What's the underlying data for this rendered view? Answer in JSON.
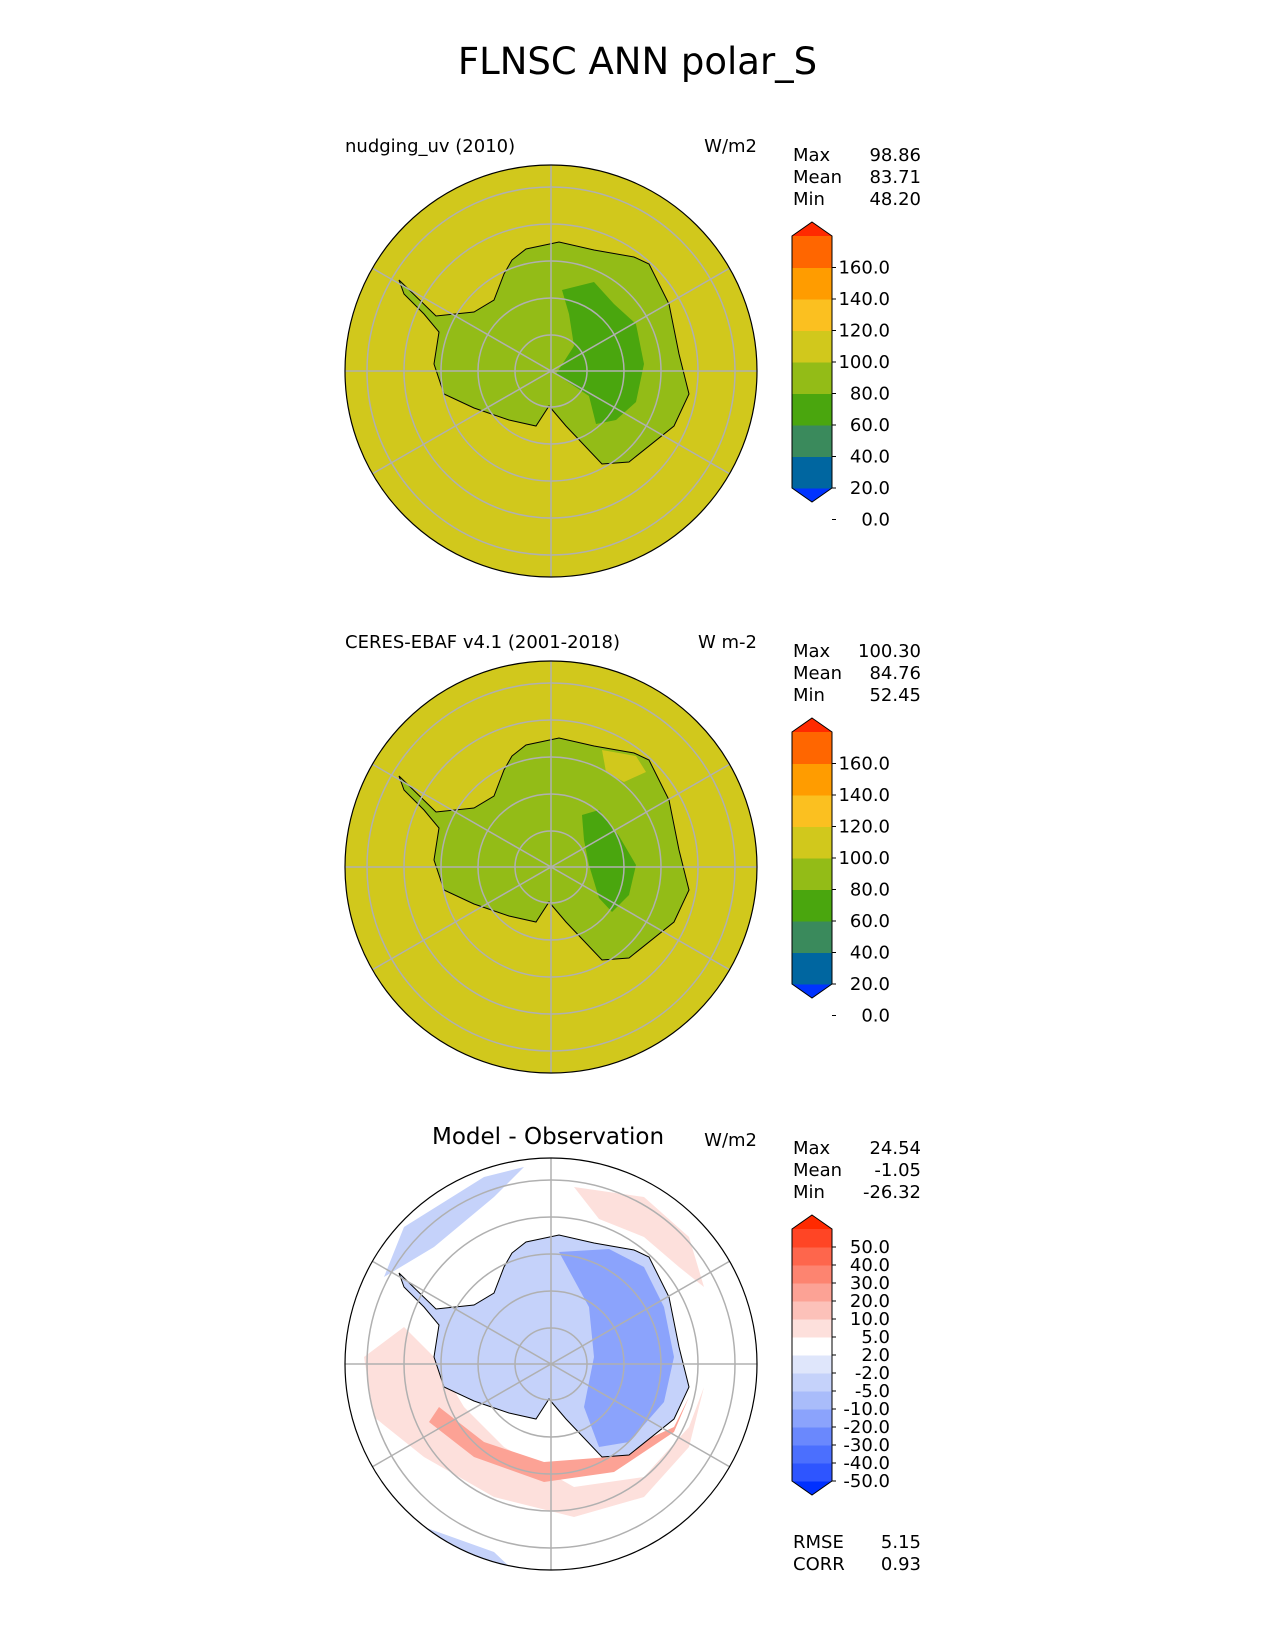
{
  "figure_title": "FLNSC ANN polar_S",
  "panels": [
    {
      "title": "nudging_uv (2010)",
      "units": "W/m2",
      "stats": [
        {
          "label": "Max",
          "value": "98.86"
        },
        {
          "label": "Mean",
          "value": "83.71"
        },
        {
          "label": "Min",
          "value": "48.20"
        }
      ],
      "colorbar": {
        "ticks": [
          "160.0",
          "140.0",
          "120.0",
          "100.0",
          "80.0",
          "60.0",
          "40.0",
          "20.0",
          "0.0"
        ],
        "colors": [
          "#0033ff",
          "#0066a0",
          "#3a8a5c",
          "#4aa60e",
          "#93bc17",
          "#d1c81c",
          "#fbc020",
          "#ff9c00",
          "#ff6600",
          "#ff2a00"
        ]
      }
    },
    {
      "title": "CERES-EBAF v4.1 (2001-2018)",
      "units": "W m-2",
      "stats": [
        {
          "label": "Max",
          "value": "100.30"
        },
        {
          "label": "Mean",
          "value": "84.76"
        },
        {
          "label": "Min",
          "value": "52.45"
        }
      ],
      "colorbar": {
        "ticks": [
          "160.0",
          "140.0",
          "120.0",
          "100.0",
          "80.0",
          "60.0",
          "40.0",
          "20.0",
          "0.0"
        ],
        "colors": [
          "#0033ff",
          "#0066a0",
          "#3a8a5c",
          "#4aa60e",
          "#93bc17",
          "#d1c81c",
          "#fbc020",
          "#ff9c00",
          "#ff6600",
          "#ff2a00"
        ]
      }
    },
    {
      "title": "Model - Observation",
      "units": "W/m2",
      "stats": [
        {
          "label": "Max",
          "value": "24.54"
        },
        {
          "label": "Mean",
          "value": "-1.05"
        },
        {
          "label": "Min",
          "value": "-26.32"
        }
      ],
      "extra_stats": [
        {
          "label": "RMSE",
          "value": "5.15"
        },
        {
          "label": "CORR",
          "value": "0.93"
        }
      ],
      "colorbar": {
        "ticks": [
          "50.0",
          "40.0",
          "30.0",
          "20.0",
          "10.0",
          "5.0",
          "2.0",
          "-2.0",
          "-5.0",
          "-10.0",
          "-20.0",
          "-30.0",
          "-40.0",
          "-50.0"
        ],
        "colors": [
          "#0030ff",
          "#2e55ff",
          "#4b6ffe",
          "#6a88fd",
          "#8ba3fc",
          "#a9bcfa",
          "#c5d2fa",
          "#dfe6fb",
          "#ffffff",
          "#fde0dc",
          "#fcc1b9",
          "#fca295",
          "#fd8470",
          "#fe664c",
          "#ff4525",
          "#ff2a00"
        ]
      }
    }
  ],
  "map_colors": {
    "ocean": "#d1c81c",
    "land_low": "#93bc17",
    "land_mid": "#4aa60e",
    "diff_bg": "#ffffff",
    "diff_neg": "#8ba3fc",
    "diff_neg_light": "#c5d2fa",
    "diff_pos": "#fca295",
    "diff_pos_light": "#fde0dc",
    "grid": "#b0b0b0"
  }
}
